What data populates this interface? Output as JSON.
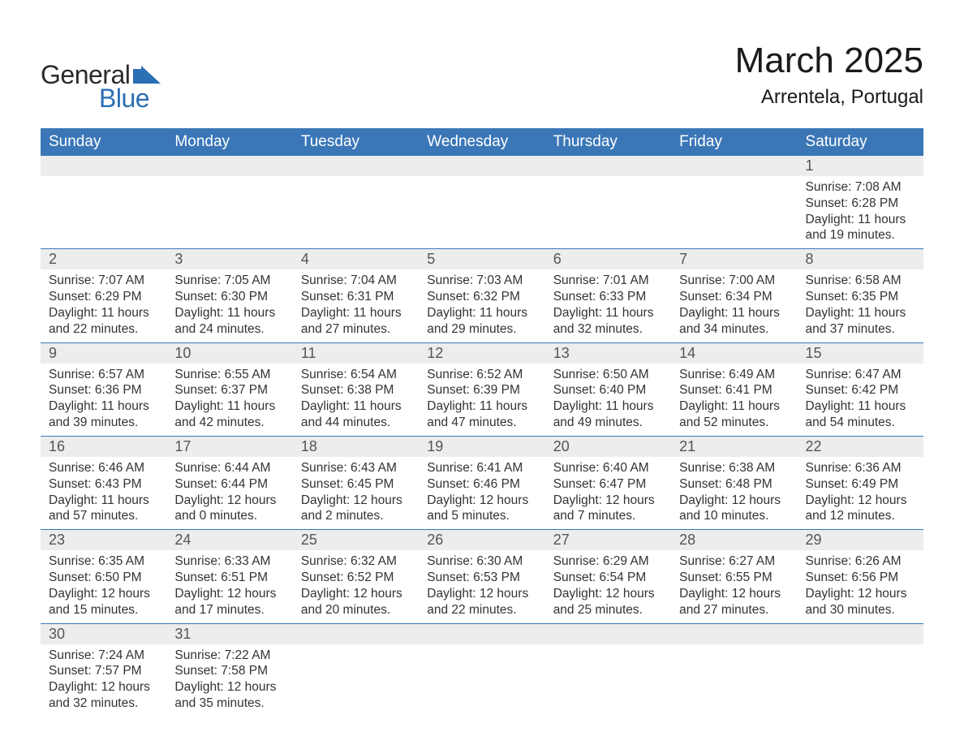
{
  "logo": {
    "word1": "General",
    "word2": "Blue",
    "text_color_dark": "#2b2b2b",
    "text_color_blue": "#2b6fb5",
    "icon_fill": "#2b6fb5"
  },
  "header": {
    "title": "March 2025",
    "location": "Arrentela, Portugal",
    "title_fontsize": 44,
    "location_fontsize": 24
  },
  "colors": {
    "header_bg": "#3b77b7",
    "header_text": "#ffffff",
    "row_border": "#3b77b7",
    "daynum_bg": "#ededed",
    "body_text": "#333333",
    "page_bg": "#ffffff"
  },
  "weekdays": [
    "Sunday",
    "Monday",
    "Tuesday",
    "Wednesday",
    "Thursday",
    "Friday",
    "Saturday"
  ],
  "weeks": [
    [
      null,
      null,
      null,
      null,
      null,
      null,
      {
        "n": "1",
        "sunrise": "7:08 AM",
        "sunset": "6:28 PM",
        "dlh": "11",
        "dlm": "19"
      }
    ],
    [
      {
        "n": "2",
        "sunrise": "7:07 AM",
        "sunset": "6:29 PM",
        "dlh": "11",
        "dlm": "22"
      },
      {
        "n": "3",
        "sunrise": "7:05 AM",
        "sunset": "6:30 PM",
        "dlh": "11",
        "dlm": "24"
      },
      {
        "n": "4",
        "sunrise": "7:04 AM",
        "sunset": "6:31 PM",
        "dlh": "11",
        "dlm": "27"
      },
      {
        "n": "5",
        "sunrise": "7:03 AM",
        "sunset": "6:32 PM",
        "dlh": "11",
        "dlm": "29"
      },
      {
        "n": "6",
        "sunrise": "7:01 AM",
        "sunset": "6:33 PM",
        "dlh": "11",
        "dlm": "32"
      },
      {
        "n": "7",
        "sunrise": "7:00 AM",
        "sunset": "6:34 PM",
        "dlh": "11",
        "dlm": "34"
      },
      {
        "n": "8",
        "sunrise": "6:58 AM",
        "sunset": "6:35 PM",
        "dlh": "11",
        "dlm": "37"
      }
    ],
    [
      {
        "n": "9",
        "sunrise": "6:57 AM",
        "sunset": "6:36 PM",
        "dlh": "11",
        "dlm": "39"
      },
      {
        "n": "10",
        "sunrise": "6:55 AM",
        "sunset": "6:37 PM",
        "dlh": "11",
        "dlm": "42"
      },
      {
        "n": "11",
        "sunrise": "6:54 AM",
        "sunset": "6:38 PM",
        "dlh": "11",
        "dlm": "44"
      },
      {
        "n": "12",
        "sunrise": "6:52 AM",
        "sunset": "6:39 PM",
        "dlh": "11",
        "dlm": "47"
      },
      {
        "n": "13",
        "sunrise": "6:50 AM",
        "sunset": "6:40 PM",
        "dlh": "11",
        "dlm": "49"
      },
      {
        "n": "14",
        "sunrise": "6:49 AM",
        "sunset": "6:41 PM",
        "dlh": "11",
        "dlm": "52"
      },
      {
        "n": "15",
        "sunrise": "6:47 AM",
        "sunset": "6:42 PM",
        "dlh": "11",
        "dlm": "54"
      }
    ],
    [
      {
        "n": "16",
        "sunrise": "6:46 AM",
        "sunset": "6:43 PM",
        "dlh": "11",
        "dlm": "57"
      },
      {
        "n": "17",
        "sunrise": "6:44 AM",
        "sunset": "6:44 PM",
        "dlh": "12",
        "dlm": "0"
      },
      {
        "n": "18",
        "sunrise": "6:43 AM",
        "sunset": "6:45 PM",
        "dlh": "12",
        "dlm": "2"
      },
      {
        "n": "19",
        "sunrise": "6:41 AM",
        "sunset": "6:46 PM",
        "dlh": "12",
        "dlm": "5"
      },
      {
        "n": "20",
        "sunrise": "6:40 AM",
        "sunset": "6:47 PM",
        "dlh": "12",
        "dlm": "7"
      },
      {
        "n": "21",
        "sunrise": "6:38 AM",
        "sunset": "6:48 PM",
        "dlh": "12",
        "dlm": "10"
      },
      {
        "n": "22",
        "sunrise": "6:36 AM",
        "sunset": "6:49 PM",
        "dlh": "12",
        "dlm": "12"
      }
    ],
    [
      {
        "n": "23",
        "sunrise": "6:35 AM",
        "sunset": "6:50 PM",
        "dlh": "12",
        "dlm": "15"
      },
      {
        "n": "24",
        "sunrise": "6:33 AM",
        "sunset": "6:51 PM",
        "dlh": "12",
        "dlm": "17"
      },
      {
        "n": "25",
        "sunrise": "6:32 AM",
        "sunset": "6:52 PM",
        "dlh": "12",
        "dlm": "20"
      },
      {
        "n": "26",
        "sunrise": "6:30 AM",
        "sunset": "6:53 PM",
        "dlh": "12",
        "dlm": "22"
      },
      {
        "n": "27",
        "sunrise": "6:29 AM",
        "sunset": "6:54 PM",
        "dlh": "12",
        "dlm": "25"
      },
      {
        "n": "28",
        "sunrise": "6:27 AM",
        "sunset": "6:55 PM",
        "dlh": "12",
        "dlm": "27"
      },
      {
        "n": "29",
        "sunrise": "6:26 AM",
        "sunset": "6:56 PM",
        "dlh": "12",
        "dlm": "30"
      }
    ],
    [
      {
        "n": "30",
        "sunrise": "7:24 AM",
        "sunset": "7:57 PM",
        "dlh": "12",
        "dlm": "32"
      },
      {
        "n": "31",
        "sunrise": "7:22 AM",
        "sunset": "7:58 PM",
        "dlh": "12",
        "dlm": "35"
      },
      null,
      null,
      null,
      null,
      null
    ]
  ],
  "labels": {
    "sunrise_prefix": "Sunrise: ",
    "sunset_prefix": "Sunset: ",
    "daylight_prefix": "Daylight: ",
    "hours_word": " hours",
    "and_word": "and ",
    "minutes_word": " minutes."
  }
}
